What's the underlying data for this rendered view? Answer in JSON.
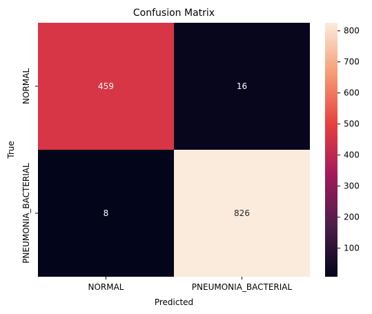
{
  "chart_data": {
    "type": "heatmap",
    "title": "Confusion Matrix",
    "xlabel": "Predicted",
    "ylabel": "True",
    "x_categories": [
      "NORMAL",
      "PNEUMONIA_BACTERIAL"
    ],
    "y_categories": [
      "NORMAL",
      "PNEUMONIA_BACTERIAL"
    ],
    "values": [
      [
        459,
        16
      ],
      [
        8,
        826
      ]
    ],
    "colorbar": {
      "min": 8,
      "max": 826,
      "ticks": [
        100,
        200,
        300,
        400,
        500,
        600,
        700,
        800
      ]
    },
    "colormap": [
      "#03051a",
      "#4c1d4b",
      "#a11a5b",
      "#e83f3f",
      "#f69c73",
      "#faebdd"
    ],
    "grid": false
  }
}
